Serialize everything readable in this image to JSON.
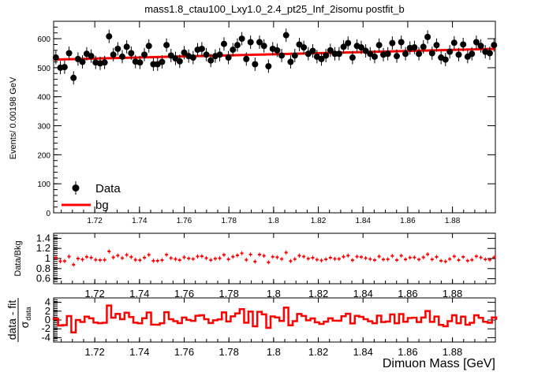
{
  "chart_data": {
    "type": "scatter",
    "title": "mass1.8_ctau100_Lxy1.0_2.4_pt25_Inf_2isomu   postfit_b",
    "xlabel": "Dimuon Mass [GeV]",
    "xlim": [
      1.7016,
      1.8992
    ],
    "x_ticks": [
      "1.72",
      "1.74",
      "1.76",
      "1.78",
      "1.8",
      "1.82",
      "1.84",
      "1.86",
      "1.88"
    ],
    "x_tick_values": [
      1.72,
      1.74,
      1.76,
      1.78,
      1.8,
      1.82,
      1.84,
      1.86,
      1.88
    ],
    "panels": {
      "main": {
        "ylabel": "Events/ 0.00198 GeV",
        "ylim": [
          0,
          660
        ],
        "y_ticks": [
          "0",
          "100",
          "200",
          "300",
          "400",
          "500",
          "600"
        ],
        "y_tick_values": [
          0,
          100,
          200,
          300,
          400,
          500,
          600
        ],
        "legend": [
          "Data",
          "bg"
        ],
        "legend_position": "bottom-left"
      },
      "ratio": {
        "ylabel": "Data/Bkg",
        "ylim": [
          0.5,
          1.5
        ],
        "y_ticks": [
          "0.6",
          "0.8",
          "1",
          "1.2",
          "1.4"
        ],
        "y_tick_values": [
          0.6,
          0.8,
          1.0,
          1.2,
          1.4
        ]
      },
      "pull": {
        "ylabel_top": "data - fit",
        "ylabel_bottom": "σ",
        "ylabel_sub": "data",
        "ylim": [
          -5,
          5
        ],
        "y_ticks": [
          "-4",
          "-2",
          "0",
          "2",
          "4"
        ],
        "y_tick_values": [
          -4,
          -2,
          0,
          2,
          4
        ]
      }
    },
    "fit_line": {
      "name": "bg",
      "x": [
        1.7016,
        1.8992
      ],
      "y": [
        528,
        565
      ],
      "color": "#ff0000"
    },
    "series": [
      {
        "name": "Data",
        "x": [
          1.7026,
          1.7046,
          1.7065,
          1.7085,
          1.7105,
          1.7125,
          1.7145,
          1.7164,
          1.7184,
          1.7204,
          1.7224,
          1.7244,
          1.7264,
          1.7283,
          1.7303,
          1.7323,
          1.7343,
          1.7363,
          1.7382,
          1.7402,
          1.7422,
          1.7442,
          1.7462,
          1.7481,
          1.7501,
          1.7521,
          1.7541,
          1.7561,
          1.758,
          1.76,
          1.762,
          1.764,
          1.766,
          1.7679,
          1.7699,
          1.7719,
          1.7739,
          1.7759,
          1.7778,
          1.7798,
          1.7818,
          1.7838,
          1.7858,
          1.7878,
          1.7897,
          1.7917,
          1.7937,
          1.7957,
          1.7977,
          1.7996,
          1.8016,
          1.8036,
          1.8056,
          1.8076,
          1.8095,
          1.8115,
          1.8135,
          1.8155,
          1.8175,
          1.8194,
          1.8214,
          1.8234,
          1.8254,
          1.8274,
          1.8293,
          1.8313,
          1.8333,
          1.8353,
          1.8373,
          1.8392,
          1.8412,
          1.8432,
          1.8452,
          1.8472,
          1.8491,
          1.8511,
          1.8531,
          1.8551,
          1.8571,
          1.859,
          1.861,
          1.863,
          1.865,
          1.867,
          1.8689,
          1.8709,
          1.8729,
          1.8749,
          1.8769,
          1.8788,
          1.8808,
          1.8828,
          1.8848,
          1.8868,
          1.8887,
          1.8907,
          1.8927,
          1.8947,
          1.8967,
          1.8986
        ],
        "y": [
          535,
          500,
          502,
          550,
          465,
          530,
          520,
          548,
          540,
          518,
          515,
          518,
          608,
          545,
          565,
          538,
          572,
          550,
          521,
          518,
          545,
          575,
          512,
          512,
          520,
          578,
          542,
          532,
          522,
          552,
          540,
          535,
          562,
          565,
          545,
          525,
          540,
          545,
          582,
          535,
          562,
          578,
          600,
          530,
          588,
          512,
          588,
          575,
          505,
          565,
          560,
          542,
          612,
          520,
          542,
          580,
          570,
          548,
          558,
          538,
          530,
          542,
          560,
          548,
          548,
          572,
          585,
          535,
          575,
          570,
          558,
          548,
          538,
          578,
          545,
          548,
          585,
          540,
          588,
          548,
          568,
          570,
          548,
          572,
          606,
          550,
          578,
          535,
          528,
          555,
          586,
          545,
          580,
          538,
          548,
          588,
          575,
          555,
          550,
          578
        ],
        "yerr": 23
      }
    ]
  }
}
